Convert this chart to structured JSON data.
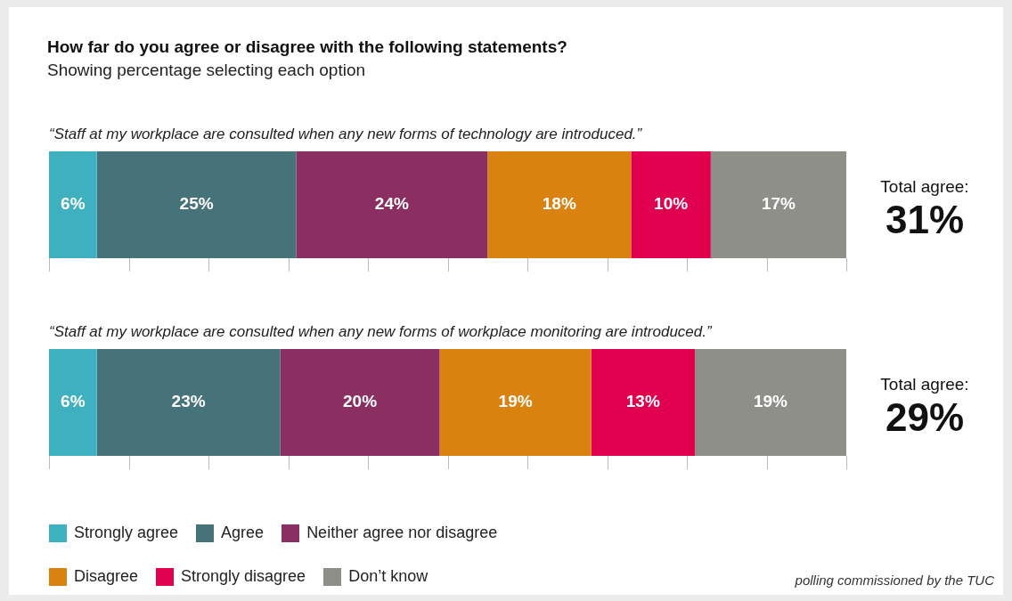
{
  "chart_data": {
    "type": "bar",
    "orientation": "horizontal",
    "stacked": true,
    "title": "How far do you agree or disagree with the following statements?",
    "subtitle": "Showing percentage selecting each option",
    "categories": [
      "“Staff at my workplace are consulted when any new forms of technology are introduced.”",
      "“Staff at my workplace are consulted when any new forms of workplace monitoring are introduced.”"
    ],
    "series": [
      {
        "name": "Strongly agree",
        "color": "#3fb0c0",
        "values": [
          6,
          6
        ],
        "value_labels": [
          "6%",
          "6%"
        ]
      },
      {
        "name": "Agree",
        "color": "#46727a",
        "values": [
          25,
          23
        ],
        "value_labels": [
          "25%",
          "23%"
        ]
      },
      {
        "name": "Neither agree nor disagree",
        "color": "#8b2f63",
        "values": [
          24,
          20
        ],
        "value_labels": [
          "24%",
          "20%"
        ]
      },
      {
        "name": "Disagree",
        "color": "#d9820f",
        "values": [
          18,
          19
        ],
        "value_labels": [
          "18%",
          "19%"
        ]
      },
      {
        "name": "Strongly disagree",
        "color": "#e0004d",
        "values": [
          10,
          13
        ],
        "value_labels": [
          "10%",
          "13%"
        ]
      },
      {
        "name": "Don’t know",
        "color": "#8f8f8a",
        "values": [
          17,
          19
        ],
        "value_labels": [
          "17%",
          "19%"
        ]
      }
    ],
    "xlim": [
      0,
      100
    ],
    "grid": false,
    "legend": "bottom left",
    "annotations": [
      {
        "text": "Total agree: 31%",
        "x": 100,
        "y": "“Staff at my workplace are consulted when any new forms of technology are introduced.”"
      },
      {
        "text": "Total agree: 29%",
        "x": 100,
        "y": "“Staff at my workplace are consulted when any new forms of workplace monitoring are introduced.”"
      },
      "polling commissioned by the TUC"
    ]
  }
}
